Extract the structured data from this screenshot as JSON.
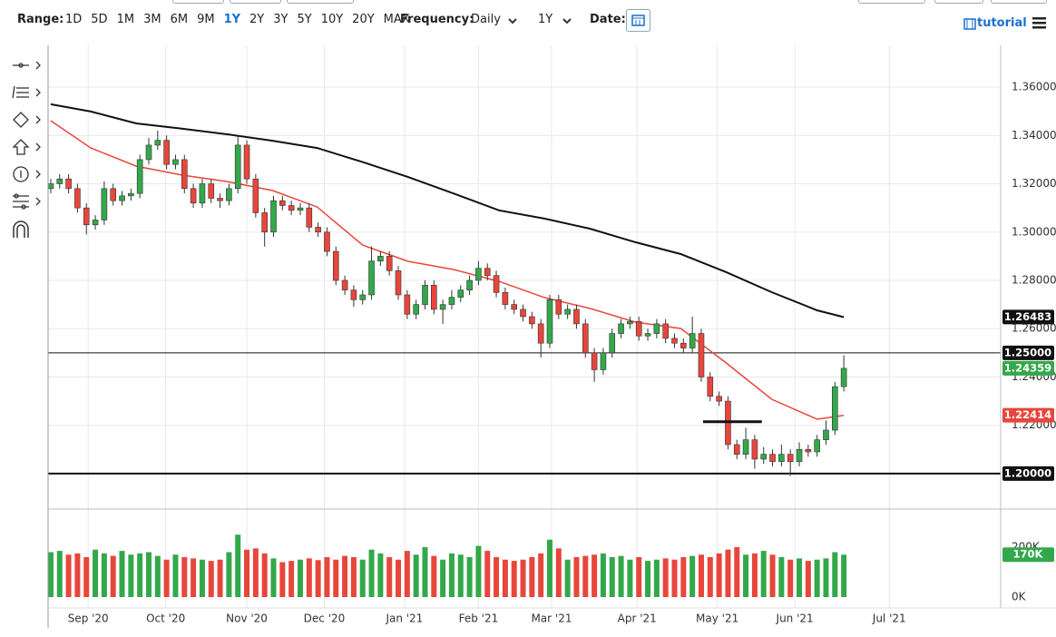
{
  "toolbar": {
    "range_label": "Range:",
    "ranges": [
      "1D",
      "5D",
      "1M",
      "3M",
      "6M",
      "9M",
      "1Y",
      "2Y",
      "3Y",
      "5Y",
      "10Y",
      "20Y",
      "MAX"
    ],
    "selected_range": "1Y",
    "frequency_label": "Frequency:",
    "frequency": "Daily",
    "period": "1Y",
    "date_label": "Date:",
    "tutorial": "tutorial"
  },
  "chart_data": {
    "type": "candlestick",
    "up_color": "#33a84b",
    "down_color": "#e8463c",
    "xlim": [
      -0.3,
      106.6
    ],
    "xticks": [
      {
        "value": 4.2,
        "label": "Sep '20"
      },
      {
        "value": 12.9,
        "label": "Oct '20"
      },
      {
        "value": 22.0,
        "label": "Nov '20"
      },
      {
        "value": 30.7,
        "label": "Dec '20"
      },
      {
        "value": 39.7,
        "label": "Jan '21"
      },
      {
        "value": 48.0,
        "label": "Feb '21"
      },
      {
        "value": 56.2,
        "label": "Mar '21"
      },
      {
        "value": 65.8,
        "label": "Apr '21"
      },
      {
        "value": 74.8,
        "label": "May '21"
      },
      {
        "value": 83.5,
        "label": "Jun '21"
      },
      {
        "value": 94.1,
        "label": "Jul '21"
      }
    ],
    "ylim": [
      1.1857,
      1.3773
    ],
    "yticks": [
      {
        "value": 1.36,
        "label": "1.36000"
      },
      {
        "value": 1.34,
        "label": "1.34000"
      },
      {
        "value": 1.32,
        "label": "1.32000"
      },
      {
        "value": 1.3,
        "label": "1.30000"
      },
      {
        "value": 1.28,
        "label": "1.28000"
      },
      {
        "value": 1.26,
        "label": "1.26000"
      },
      {
        "value": 1.24,
        "label": "1.24000"
      },
      {
        "value": 1.22,
        "label": "1.22000"
      }
    ],
    "vlim": [
      0,
      349000
    ],
    "vticks": [
      {
        "value": 0,
        "label": "0K"
      },
      {
        "value": 200000,
        "label": "200K"
      }
    ],
    "grid": true,
    "open": [
      1.318,
      1.32,
      1.322,
      1.318,
      1.31,
      1.303,
      1.305,
      1.318,
      1.313,
      1.315,
      1.316,
      1.33,
      1.336,
      1.338,
      1.328,
      1.33,
      1.318,
      1.312,
      1.32,
      1.314,
      1.313,
      1.318,
      1.336,
      1.322,
      1.308,
      1.3,
      1.313,
      1.311,
      1.309,
      1.31,
      1.302,
      1.3,
      1.292,
      1.28,
      1.276,
      1.272,
      1.274,
      1.288,
      1.29,
      1.284,
      1.274,
      1.266,
      1.27,
      1.278,
      1.268,
      1.27,
      1.273,
      1.276,
      1.28,
      1.285,
      1.282,
      1.275,
      1.27,
      1.268,
      1.265,
      1.262,
      1.254,
      1.272,
      1.266,
      1.268,
      1.262,
      1.25,
      1.243,
      1.25,
      1.258,
      1.262,
      1.263,
      1.257,
      1.258,
      1.262,
      1.256,
      1.254,
      1.252,
      1.258,
      1.24,
      1.232,
      1.23,
      1.212,
      1.208,
      1.214,
      1.206,
      1.208,
      1.205,
      1.208,
      1.205,
      1.21,
      1.209,
      1.214,
      1.218,
      1.236
    ],
    "high": [
      1.322,
      1.324,
      1.324,
      1.32,
      1.312,
      1.307,
      1.321,
      1.32,
      1.317,
      1.318,
      1.332,
      1.339,
      1.342,
      1.34,
      1.332,
      1.332,
      1.32,
      1.322,
      1.322,
      1.316,
      1.32,
      1.34,
      1.338,
      1.324,
      1.31,
      1.315,
      1.315,
      1.313,
      1.312,
      1.312,
      1.304,
      1.302,
      1.294,
      1.282,
      1.278,
      1.276,
      1.294,
      1.292,
      1.292,
      1.286,
      1.276,
      1.272,
      1.28,
      1.28,
      1.272,
      1.276,
      1.278,
      1.282,
      1.288,
      1.287,
      1.284,
      1.277,
      1.272,
      1.27,
      1.267,
      1.264,
      1.274,
      1.274,
      1.27,
      1.27,
      1.264,
      1.252,
      1.252,
      1.26,
      1.264,
      1.265,
      1.265,
      1.26,
      1.264,
      1.264,
      1.258,
      1.256,
      1.265,
      1.26,
      1.242,
      1.234,
      1.232,
      1.214,
      1.219,
      1.216,
      1.211,
      1.21,
      1.212,
      1.21,
      1.213,
      1.212,
      1.216,
      1.222,
      1.238,
      1.249
    ],
    "low": [
      1.316,
      1.318,
      1.316,
      1.308,
      1.299,
      1.301,
      1.303,
      1.311,
      1.311,
      1.313,
      1.314,
      1.328,
      1.334,
      1.326,
      1.326,
      1.316,
      1.31,
      1.31,
      1.312,
      1.31,
      1.311,
      1.316,
      1.32,
      1.306,
      1.294,
      1.298,
      1.309,
      1.307,
      1.307,
      1.3,
      1.298,
      1.29,
      1.278,
      1.274,
      1.269,
      1.27,
      1.272,
      1.286,
      1.282,
      1.272,
      1.264,
      1.264,
      1.268,
      1.266,
      1.262,
      1.268,
      1.271,
      1.274,
      1.278,
      1.28,
      1.273,
      1.268,
      1.266,
      1.263,
      1.26,
      1.248,
      1.252,
      1.264,
      1.264,
      1.26,
      1.248,
      1.238,
      1.241,
      1.248,
      1.256,
      1.26,
      1.255,
      1.255,
      1.256,
      1.254,
      1.252,
      1.25,
      1.25,
      1.238,
      1.23,
      1.228,
      1.21,
      1.206,
      1.206,
      1.202,
      1.204,
      1.203,
      1.203,
      1.199,
      1.203,
      1.207,
      1.207,
      1.212,
      1.216,
      1.234
    ],
    "close": [
      1.32,
      1.322,
      1.318,
      1.31,
      1.303,
      1.305,
      1.318,
      1.313,
      1.315,
      1.316,
      1.33,
      1.336,
      1.338,
      1.328,
      1.33,
      1.318,
      1.312,
      1.32,
      1.314,
      1.313,
      1.318,
      1.336,
      1.322,
      1.308,
      1.3,
      1.313,
      1.311,
      1.309,
      1.31,
      1.302,
      1.3,
      1.292,
      1.28,
      1.276,
      1.272,
      1.274,
      1.288,
      1.29,
      1.284,
      1.274,
      1.266,
      1.27,
      1.278,
      1.268,
      1.27,
      1.273,
      1.276,
      1.28,
      1.285,
      1.282,
      1.275,
      1.27,
      1.268,
      1.265,
      1.262,
      1.254,
      1.272,
      1.266,
      1.268,
      1.262,
      1.25,
      1.243,
      1.25,
      1.258,
      1.262,
      1.263,
      1.257,
      1.258,
      1.262,
      1.256,
      1.254,
      1.252,
      1.258,
      1.24,
      1.232,
      1.23,
      1.212,
      1.208,
      1.214,
      1.206,
      1.208,
      1.205,
      1.208,
      1.205,
      1.21,
      1.209,
      1.214,
      1.218,
      1.236,
      1.24359
    ],
    "volume": [
      180000,
      185000,
      170000,
      175000,
      160000,
      190000,
      175000,
      165000,
      185000,
      170000,
      175000,
      180000,
      165000,
      150000,
      170000,
      160000,
      155000,
      150000,
      145000,
      150000,
      180000,
      250000,
      190000,
      195000,
      175000,
      155000,
      140000,
      145000,
      150000,
      155000,
      148000,
      160000,
      150000,
      165000,
      160000,
      150000,
      190000,
      175000,
      160000,
      150000,
      185000,
      170000,
      200000,
      165000,
      150000,
      175000,
      170000,
      160000,
      205000,
      185000,
      160000,
      150000,
      145000,
      150000,
      160000,
      175000,
      230000,
      195000,
      150000,
      160000,
      165000,
      170000,
      175000,
      160000,
      165000,
      150000,
      160000,
      145000,
      150000,
      155000,
      150000,
      160000,
      165000,
      170000,
      160000,
      175000,
      190000,
      200000,
      170000,
      175000,
      185000,
      170000,
      160000,
      150000,
      155000,
      145000,
      150000,
      155000,
      180000,
      170000
    ],
    "lines": [
      {
        "color": "#111111",
        "x": [
          0,
          4.5,
          9.6,
          14.7,
          19.8,
          24.9,
          29.9,
          35,
          40.1,
          45.2,
          50.3,
          55.4,
          60.5,
          65.6,
          70.7,
          75.8,
          80.9,
          86,
          89
        ],
        "values": [
          1.3529,
          1.3499,
          1.345,
          1.3428,
          1.3405,
          1.3378,
          1.3348,
          1.329,
          1.3228,
          1.316,
          1.309,
          1.3056,
          1.3014,
          1.2958,
          1.2909,
          1.2834,
          1.2751,
          1.2676,
          1.2648
        ]
      },
      {
        "color": "#e8463c",
        "x": [
          0,
          4.5,
          9.6,
          14.7,
          19.8,
          24.9,
          29.9,
          35,
          40.1,
          45.2,
          50.3,
          55.4,
          60.5,
          65.6,
          70.7,
          75.8,
          80.9,
          86,
          89
        ],
        "values": [
          1.3461,
          1.3348,
          1.3273,
          1.3236,
          1.3209,
          1.3172,
          1.3104,
          1.2946,
          1.2879,
          1.2845,
          1.2796,
          1.2729,
          1.2684,
          1.2627,
          1.2601,
          1.2458,
          1.2308,
          1.2225,
          1.2241
        ]
      }
    ],
    "levels": [
      1.25,
      1.2
    ],
    "segment": {
      "value": 1.2215,
      "x": [
        73.2,
        79.8
      ]
    },
    "badges": [
      {
        "value": 1.26483,
        "color": "#111111"
      },
      {
        "value": {
          "value": 1.25,
          "label": "1.25000"
        },
        "color": "#111111"
      },
      {
        "value": 1.24359,
        "color": "#33a84b"
      },
      {
        "value": 1.22414,
        "color": "#e8463c"
      },
      {
        "value": {
          "value": 1.2,
          "label": "1.20000"
        },
        "color": "#111111"
      },
      {
        "value": {
          "value": 170000,
          "label": "170K"
        },
        "color": "#33a84b",
        "axis": "volume"
      }
    ]
  }
}
